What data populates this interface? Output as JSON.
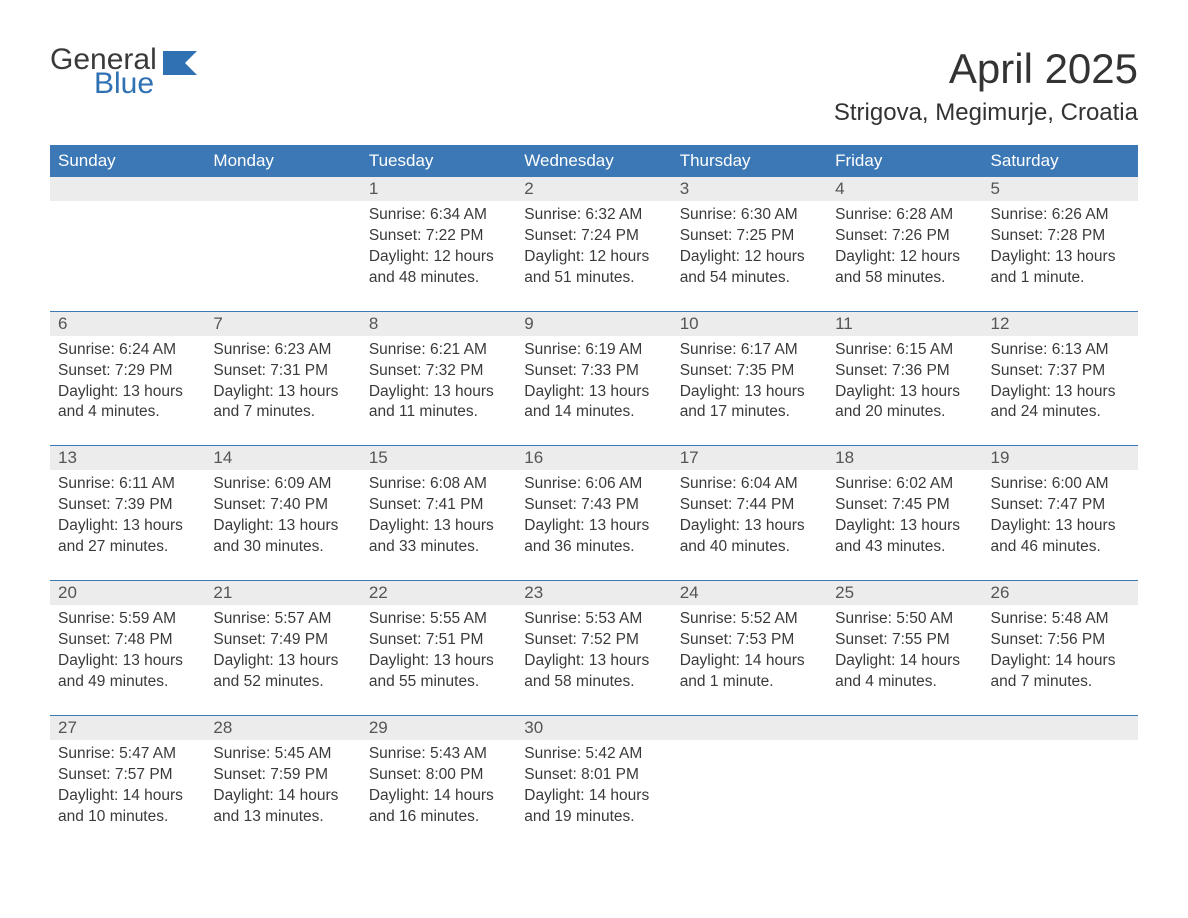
{
  "logo": {
    "word1": "General",
    "word2": "Blue"
  },
  "title": "April 2025",
  "location": "Strigova, Megimurje, Croatia",
  "colors": {
    "header_bg": "#3b78b5",
    "header_text": "#ffffff",
    "daynum_bg": "#ececec",
    "divider": "#3b78b5",
    "accent_blue": "#2f71b3",
    "body_text": "#3a3a3a",
    "background": "#ffffff"
  },
  "typography": {
    "title_fontsize": 42,
    "location_fontsize": 24,
    "header_fontsize": 17,
    "daynum_fontsize": 17,
    "cell_fontsize": 15.5,
    "logo_fontsize": 30
  },
  "day_headers": [
    "Sunday",
    "Monday",
    "Tuesday",
    "Wednesday",
    "Thursday",
    "Friday",
    "Saturday"
  ],
  "weeks": [
    {
      "nums": [
        "",
        "",
        "1",
        "2",
        "3",
        "4",
        "5"
      ],
      "cells": [
        {
          "sunrise": "",
          "sunset": "",
          "daylight": ""
        },
        {
          "sunrise": "",
          "sunset": "",
          "daylight": ""
        },
        {
          "sunrise": "Sunrise: 6:34 AM",
          "sunset": "Sunset: 7:22 PM",
          "daylight": "Daylight: 12 hours and 48 minutes."
        },
        {
          "sunrise": "Sunrise: 6:32 AM",
          "sunset": "Sunset: 7:24 PM",
          "daylight": "Daylight: 12 hours and 51 minutes."
        },
        {
          "sunrise": "Sunrise: 6:30 AM",
          "sunset": "Sunset: 7:25 PM",
          "daylight": "Daylight: 12 hours and 54 minutes."
        },
        {
          "sunrise": "Sunrise: 6:28 AM",
          "sunset": "Sunset: 7:26 PM",
          "daylight": "Daylight: 12 hours and 58 minutes."
        },
        {
          "sunrise": "Sunrise: 6:26 AM",
          "sunset": "Sunset: 7:28 PM",
          "daylight": "Daylight: 13 hours and 1 minute."
        }
      ]
    },
    {
      "nums": [
        "6",
        "7",
        "8",
        "9",
        "10",
        "11",
        "12"
      ],
      "cells": [
        {
          "sunrise": "Sunrise: 6:24 AM",
          "sunset": "Sunset: 7:29 PM",
          "daylight": "Daylight: 13 hours and 4 minutes."
        },
        {
          "sunrise": "Sunrise: 6:23 AM",
          "sunset": "Sunset: 7:31 PM",
          "daylight": "Daylight: 13 hours and 7 minutes."
        },
        {
          "sunrise": "Sunrise: 6:21 AM",
          "sunset": "Sunset: 7:32 PM",
          "daylight": "Daylight: 13 hours and 11 minutes."
        },
        {
          "sunrise": "Sunrise: 6:19 AM",
          "sunset": "Sunset: 7:33 PM",
          "daylight": "Daylight: 13 hours and 14 minutes."
        },
        {
          "sunrise": "Sunrise: 6:17 AM",
          "sunset": "Sunset: 7:35 PM",
          "daylight": "Daylight: 13 hours and 17 minutes."
        },
        {
          "sunrise": "Sunrise: 6:15 AM",
          "sunset": "Sunset: 7:36 PM",
          "daylight": "Daylight: 13 hours and 20 minutes."
        },
        {
          "sunrise": "Sunrise: 6:13 AM",
          "sunset": "Sunset: 7:37 PM",
          "daylight": "Daylight: 13 hours and 24 minutes."
        }
      ]
    },
    {
      "nums": [
        "13",
        "14",
        "15",
        "16",
        "17",
        "18",
        "19"
      ],
      "cells": [
        {
          "sunrise": "Sunrise: 6:11 AM",
          "sunset": "Sunset: 7:39 PM",
          "daylight": "Daylight: 13 hours and 27 minutes."
        },
        {
          "sunrise": "Sunrise: 6:09 AM",
          "sunset": "Sunset: 7:40 PM",
          "daylight": "Daylight: 13 hours and 30 minutes."
        },
        {
          "sunrise": "Sunrise: 6:08 AM",
          "sunset": "Sunset: 7:41 PM",
          "daylight": "Daylight: 13 hours and 33 minutes."
        },
        {
          "sunrise": "Sunrise: 6:06 AM",
          "sunset": "Sunset: 7:43 PM",
          "daylight": "Daylight: 13 hours and 36 minutes."
        },
        {
          "sunrise": "Sunrise: 6:04 AM",
          "sunset": "Sunset: 7:44 PM",
          "daylight": "Daylight: 13 hours and 40 minutes."
        },
        {
          "sunrise": "Sunrise: 6:02 AM",
          "sunset": "Sunset: 7:45 PM",
          "daylight": "Daylight: 13 hours and 43 minutes."
        },
        {
          "sunrise": "Sunrise: 6:00 AM",
          "sunset": "Sunset: 7:47 PM",
          "daylight": "Daylight: 13 hours and 46 minutes."
        }
      ]
    },
    {
      "nums": [
        "20",
        "21",
        "22",
        "23",
        "24",
        "25",
        "26"
      ],
      "cells": [
        {
          "sunrise": "Sunrise: 5:59 AM",
          "sunset": "Sunset: 7:48 PM",
          "daylight": "Daylight: 13 hours and 49 minutes."
        },
        {
          "sunrise": "Sunrise: 5:57 AM",
          "sunset": "Sunset: 7:49 PM",
          "daylight": "Daylight: 13 hours and 52 minutes."
        },
        {
          "sunrise": "Sunrise: 5:55 AM",
          "sunset": "Sunset: 7:51 PM",
          "daylight": "Daylight: 13 hours and 55 minutes."
        },
        {
          "sunrise": "Sunrise: 5:53 AM",
          "sunset": "Sunset: 7:52 PM",
          "daylight": "Daylight: 13 hours and 58 minutes."
        },
        {
          "sunrise": "Sunrise: 5:52 AM",
          "sunset": "Sunset: 7:53 PM",
          "daylight": "Daylight: 14 hours and 1 minute."
        },
        {
          "sunrise": "Sunrise: 5:50 AM",
          "sunset": "Sunset: 7:55 PM",
          "daylight": "Daylight: 14 hours and 4 minutes."
        },
        {
          "sunrise": "Sunrise: 5:48 AM",
          "sunset": "Sunset: 7:56 PM",
          "daylight": "Daylight: 14 hours and 7 minutes."
        }
      ]
    },
    {
      "nums": [
        "27",
        "28",
        "29",
        "30",
        "",
        "",
        ""
      ],
      "cells": [
        {
          "sunrise": "Sunrise: 5:47 AM",
          "sunset": "Sunset: 7:57 PM",
          "daylight": "Daylight: 14 hours and 10 minutes."
        },
        {
          "sunrise": "Sunrise: 5:45 AM",
          "sunset": "Sunset: 7:59 PM",
          "daylight": "Daylight: 14 hours and 13 minutes."
        },
        {
          "sunrise": "Sunrise: 5:43 AM",
          "sunset": "Sunset: 8:00 PM",
          "daylight": "Daylight: 14 hours and 16 minutes."
        },
        {
          "sunrise": "Sunrise: 5:42 AM",
          "sunset": "Sunset: 8:01 PM",
          "daylight": "Daylight: 14 hours and 19 minutes."
        },
        {
          "sunrise": "",
          "sunset": "",
          "daylight": ""
        },
        {
          "sunrise": "",
          "sunset": "",
          "daylight": ""
        },
        {
          "sunrise": "",
          "sunset": "",
          "daylight": ""
        }
      ]
    }
  ]
}
